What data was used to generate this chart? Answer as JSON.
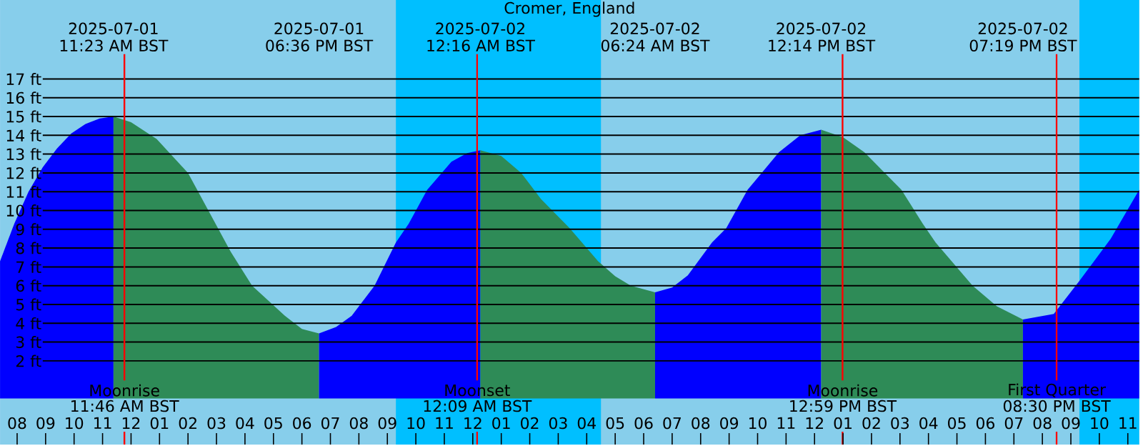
{
  "chart_data": {
    "type": "area",
    "title": "Cromer, England",
    "marker": "none",
    "grid": "y",
    "xlim": [
      "2025-07-01T07:24",
      "2025-07-02T23:24"
    ],
    "ylim": [
      -2.45,
      21.2
    ],
    "xticks": [
      {
        "value": "2025-07-01T08:00",
        "label": "08"
      },
      {
        "value": "2025-07-01T09:00",
        "label": "09"
      },
      {
        "value": "2025-07-01T10:00",
        "label": "10"
      },
      {
        "value": "2025-07-01T11:00",
        "label": "11"
      },
      {
        "value": "2025-07-01T12:00",
        "label": "12"
      },
      {
        "value": "2025-07-01T13:00",
        "label": "01"
      },
      {
        "value": "2025-07-01T14:00",
        "label": "02"
      },
      {
        "value": "2025-07-01T15:00",
        "label": "03"
      },
      {
        "value": "2025-07-01T16:00",
        "label": "04"
      },
      {
        "value": "2025-07-01T17:00",
        "label": "05"
      },
      {
        "value": "2025-07-01T18:00",
        "label": "06"
      },
      {
        "value": "2025-07-01T19:00",
        "label": "07"
      },
      {
        "value": "2025-07-01T20:00",
        "label": "08"
      },
      {
        "value": "2025-07-01T21:00",
        "label": "09"
      },
      {
        "value": "2025-07-01T22:00",
        "label": "10"
      },
      {
        "value": "2025-07-01T23:00",
        "label": "11"
      },
      {
        "value": "2025-07-02T00:00",
        "label": "12"
      },
      {
        "value": "2025-07-02T01:00",
        "label": "01"
      },
      {
        "value": "2025-07-02T02:00",
        "label": "02"
      },
      {
        "value": "2025-07-02T03:00",
        "label": "03"
      },
      {
        "value": "2025-07-02T04:00",
        "label": "04"
      },
      {
        "value": "2025-07-02T05:00",
        "label": "05"
      },
      {
        "value": "2025-07-02T06:00",
        "label": "06"
      },
      {
        "value": "2025-07-02T07:00",
        "label": "07"
      },
      {
        "value": "2025-07-02T08:00",
        "label": "08"
      },
      {
        "value": "2025-07-02T09:00",
        "label": "09"
      },
      {
        "value": "2025-07-02T10:00",
        "label": "10"
      },
      {
        "value": "2025-07-02T11:00",
        "label": "11"
      },
      {
        "value": "2025-07-02T12:00",
        "label": "12"
      },
      {
        "value": "2025-07-02T13:00",
        "label": "01"
      },
      {
        "value": "2025-07-02T14:00",
        "label": "02"
      },
      {
        "value": "2025-07-02T15:00",
        "label": "03"
      },
      {
        "value": "2025-07-02T16:00",
        "label": "04"
      },
      {
        "value": "2025-07-02T17:00",
        "label": "05"
      },
      {
        "value": "2025-07-02T18:00",
        "label": "06"
      },
      {
        "value": "2025-07-02T19:00",
        "label": "07"
      },
      {
        "value": "2025-07-02T20:00",
        "label": "08"
      },
      {
        "value": "2025-07-02T21:00",
        "label": "09"
      },
      {
        "value": "2025-07-02T22:00",
        "label": "10"
      },
      {
        "value": "2025-07-02T23:00",
        "label": "11"
      }
    ],
    "yticks": [
      {
        "value": 2,
        "label": "2 ft"
      },
      {
        "value": 3,
        "label": "3 ft"
      },
      {
        "value": 4,
        "label": "4 ft"
      },
      {
        "value": 5,
        "label": "5 ft"
      },
      {
        "value": 6,
        "label": "6 ft"
      },
      {
        "value": 7,
        "label": "7 ft"
      },
      {
        "value": 8,
        "label": "8 ft"
      },
      {
        "value": 9,
        "label": "9 ft"
      },
      {
        "value": 10,
        "label": "10 ft"
      },
      {
        "value": 11,
        "label": "11 ft"
      },
      {
        "value": 12,
        "label": "12 ft"
      },
      {
        "value": 13,
        "label": "13 ft"
      },
      {
        "value": 14,
        "label": "14 ft"
      },
      {
        "value": 15,
        "label": "15 ft"
      },
      {
        "value": 16,
        "label": "16 ft"
      },
      {
        "value": 17,
        "label": "17 ft"
      }
    ],
    "bands": [
      {
        "axis": "x",
        "from": "2025-07-01T21:18",
        "to": "2025-07-02T04:30",
        "color": "#00bfff"
      },
      {
        "axis": "x",
        "from": "2025-07-02T21:18",
        "to": "2025-07-02T23:24",
        "color": "#00bfff"
      }
    ],
    "series": [
      {
        "color": "#0000ff",
        "x": [
          "2025-07-01T07:24",
          "2025-07-01T07:54",
          "2025-07-01T08:24",
          "2025-07-01T08:54",
          "2025-07-01T09:24",
          "2025-07-01T09:54",
          "2025-07-01T10:24",
          "2025-07-01T10:54",
          "2025-07-01T11:23"
        ],
        "values": [
          7.3,
          9.3,
          11.0,
          12.3,
          13.3,
          14.1,
          14.6,
          14.9,
          15.0
        ]
      },
      {
        "color": "#2e8b57",
        "x": [
          "2025-07-01T11:23",
          "2025-07-01T12:00",
          "2025-07-01T12:54",
          "2025-07-01T14:00",
          "2025-07-01T15:00",
          "2025-07-01T15:30",
          "2025-07-01T16:15",
          "2025-07-01T17:24",
          "2025-07-01T18:00",
          "2025-07-01T18:36"
        ],
        "values": [
          15.0,
          14.7,
          13.8,
          12.0,
          9.2,
          7.8,
          6.0,
          4.4,
          3.7,
          3.46
        ]
      },
      {
        "color": "#0000ff",
        "x": [
          "2025-07-01T18:36",
          "2025-07-01T19:12",
          "2025-07-01T19:45",
          "2025-07-01T20:33",
          "2025-07-01T21:18",
          "2025-07-01T21:45",
          "2025-07-01T22:24",
          "2025-07-01T23:15",
          "2025-07-01T23:48",
          "2025-07-02T00:16"
        ],
        "values": [
          3.46,
          3.8,
          4.4,
          6.0,
          8.3,
          9.3,
          11.1,
          12.6,
          13.05,
          13.2
        ]
      },
      {
        "color": "#2e8b57",
        "x": [
          "2025-07-02T00:16",
          "2025-07-02T01:00",
          "2025-07-02T01:42",
          "2025-07-02T02:24",
          "2025-07-02T03:24",
          "2025-07-02T04:24",
          "2025-07-02T05:00",
          "2025-07-02T05:33",
          "2025-07-02T06:24"
        ],
        "values": [
          13.2,
          12.9,
          12.0,
          10.6,
          9.06,
          7.3,
          6.5,
          6.0,
          5.65
        ]
      },
      {
        "color": "#0000ff",
        "x": [
          "2025-07-02T06:24",
          "2025-07-02T07:00",
          "2025-07-02T07:33",
          "2025-07-02T08:24",
          "2025-07-02T08:54",
          "2025-07-02T09:39",
          "2025-07-02T10:45",
          "2025-07-02T11:30",
          "2025-07-02T12:14"
        ],
        "values": [
          5.65,
          5.9,
          6.55,
          8.3,
          9.06,
          11.1,
          13.1,
          14.0,
          14.3
        ]
      },
      {
        "color": "#2e8b57",
        "x": [
          "2025-07-02T12:14",
          "2025-07-02T13:00",
          "2025-07-02T13:45",
          "2025-07-02T15:03",
          "2025-07-02T15:48",
          "2025-07-02T16:15",
          "2025-07-02T17:33",
          "2025-07-02T18:24",
          "2025-07-02T19:19"
        ],
        "values": [
          14.3,
          13.9,
          13.1,
          11.1,
          9.3,
          8.3,
          6.0,
          4.9,
          4.2
        ]
      },
      {
        "color": "#0000ff",
        "x": [
          "2025-07-02T19:19",
          "2025-07-02T20:24",
          "2025-07-02T21:18",
          "2025-07-02T22:24",
          "2025-07-02T23:24"
        ],
        "values": [
          4.2,
          4.5,
          6.25,
          8.5,
          11.1
        ]
      }
    ],
    "ref_lines": [
      {
        "axis": "x",
        "value": "2025-07-01T11:46",
        "label": "Moonrise",
        "color": "#ff0000"
      },
      {
        "axis": "x",
        "value": "2025-07-02T00:09",
        "label": "Moonset",
        "color": "#ff0000"
      },
      {
        "axis": "x",
        "value": "2025-07-02T12:59",
        "label": "Moonrise",
        "color": "#ff0000"
      },
      {
        "axis": "x",
        "value": "2025-07-02T20:30",
        "label": "First Quarter",
        "color": "#ff0000"
      }
    ],
    "annotations": [
      "2025-07-01",
      "11:23 AM BST",
      "2025-07-01",
      "06:36 PM BST",
      "2025-07-02",
      "12:16 AM BST",
      "2025-07-02",
      "06:24 AM BST",
      "2025-07-02",
      "12:14 PM BST",
      "2025-07-02",
      "07:19 PM BST",
      "11:46 AM BST",
      "12:09 AM BST",
      "12:59 PM BST",
      "08:30 PM BST"
    ]
  }
}
